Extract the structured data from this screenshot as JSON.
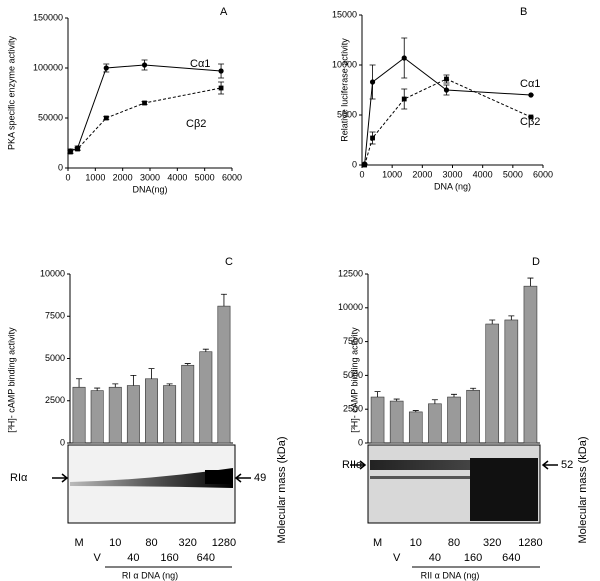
{
  "chart_data": [
    {
      "type": "line",
      "panel": "A",
      "xlabel": "DNA(ng)",
      "ylabel": "PKA specific enzyme activity",
      "x": [
        87.5,
        350,
        1400,
        2800,
        5600
      ],
      "series": [
        {
          "name": "Cα1",
          "color": "#000000",
          "marker": "circle",
          "dashed": false,
          "values": [
            17000,
            20000,
            100000,
            103000,
            97000
          ],
          "errors": [
            2000,
            2000,
            4000,
            5000,
            7000
          ]
        },
        {
          "name": "Cβ2",
          "color": "#000000",
          "marker": "square",
          "dashed": true,
          "values": [
            16000,
            19000,
            50000,
            65000,
            80000
          ],
          "errors": [
            1500,
            1500,
            1500,
            1500,
            6000
          ]
        }
      ],
      "xlim": [
        0,
        6000
      ],
      "xticks": [
        0,
        1000,
        2000,
        3000,
        4000,
        5000,
        6000
      ],
      "ylim": [
        0,
        150000
      ],
      "yticks": [
        0,
        50000,
        100000,
        150000
      ]
    },
    {
      "type": "line",
      "panel": "B",
      "xlabel": "DNA (ng)",
      "ylabel": "Relative luciferase activity",
      "x": [
        87.5,
        350,
        1400,
        2800,
        5600
      ],
      "series": [
        {
          "name": "Cα1",
          "color": "#000000",
          "marker": "circle",
          "dashed": false,
          "values": [
            100,
            8300,
            10700,
            7500,
            7000
          ],
          "errors": [
            0,
            1700,
            2000,
            500,
            0
          ]
        },
        {
          "name": "Cβ2",
          "color": "#000000",
          "marker": "square",
          "dashed": true,
          "values": [
            0,
            2700,
            6600,
            8600,
            4800
          ],
          "errors": [
            0,
            600,
            1000,
            400,
            0
          ]
        }
      ],
      "xlim": [
        0,
        6000
      ],
      "xticks": [
        0,
        1000,
        2000,
        3000,
        4000,
        5000,
        6000
      ],
      "ylim": [
        0,
        15000
      ],
      "yticks": [
        0,
        5000,
        10000,
        15000
      ]
    },
    {
      "type": "bar",
      "panel": "C",
      "ylabel": "[³H]- cAMP binding activity",
      "blot_label": "RIα",
      "mass": "49",
      "mass_label": "Molecular mass (kDa)",
      "xlabel": "RI α DNA (ng)",
      "color": "#9a9a9a",
      "categories": [
        "M",
        "V",
        "10",
        "40",
        "80",
        "160",
        "320",
        "640",
        "1280"
      ],
      "values": [
        3300,
        3100,
        3300,
        3400,
        3800,
        3400,
        4600,
        5400,
        8100
      ],
      "errors": [
        500,
        150,
        200,
        600,
        600,
        100,
        100,
        150,
        700
      ],
      "ylim": [
        0,
        10000
      ],
      "yticks": [
        0,
        2500,
        5000,
        7500,
        10000
      ]
    },
    {
      "type": "bar",
      "panel": "D",
      "ylabel": "[³H]- cAMP binding activity",
      "blot_label": "RIIα",
      "mass": "52",
      "mass_label": "Molecular mass (kDa)",
      "xlabel": "RII α DNA (ng)",
      "color": "#9a9a9a",
      "categories": [
        "M",
        "V",
        "10",
        "40",
        "80",
        "160",
        "320",
        "640",
        "1280"
      ],
      "values": [
        3400,
        3100,
        2300,
        2900,
        3400,
        3900,
        8800,
        9100,
        11600
      ],
      "errors": [
        400,
        150,
        100,
        300,
        200,
        150,
        300,
        300,
        600
      ],
      "ylim": [
        0,
        12500
      ],
      "yticks": [
        0,
        2500,
        5000,
        7500,
        10000,
        12500
      ]
    }
  ]
}
